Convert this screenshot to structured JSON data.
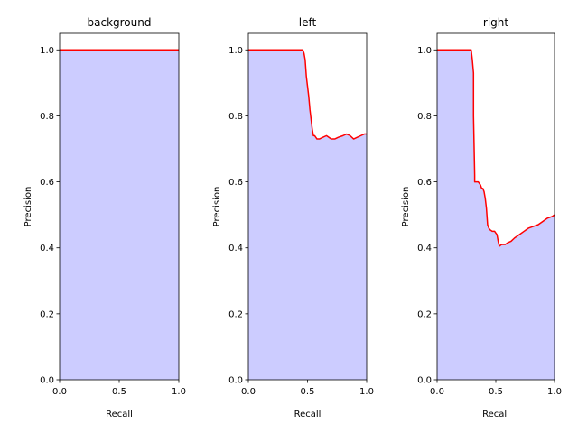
{
  "colors": {
    "fill": "#ccccff",
    "line": "#ff0000",
    "frame": "#000000"
  },
  "chart_data": [
    {
      "type": "area",
      "title": "background",
      "xlabel": "Recall",
      "ylabel": "Precision",
      "xlim": [
        0,
        1
      ],
      "ylim": [
        0,
        1.05
      ],
      "xticks": [
        "0.0",
        "0.5",
        "1.0"
      ],
      "yticks": [
        "0.0",
        "0.2",
        "0.4",
        "0.6",
        "0.8",
        "1.0"
      ],
      "grid": false,
      "series": [
        {
          "x": [
            0.0,
            1.0
          ],
          "y": [
            1.0,
            1.0
          ]
        }
      ]
    },
    {
      "type": "area",
      "title": "left",
      "xlabel": "Recall",
      "ylabel": "Precision",
      "xlim": [
        0,
        1
      ],
      "ylim": [
        0,
        1.05
      ],
      "xticks": [
        "0.0",
        "0.5",
        "1.0"
      ],
      "yticks": [
        "0.0",
        "0.2",
        "0.4",
        "0.6",
        "0.8",
        "1.0"
      ],
      "grid": false,
      "series": [
        {
          "x": [
            0.0,
            0.46,
            0.47,
            0.48,
            0.49,
            0.5,
            0.51,
            0.52,
            0.53,
            0.54,
            0.55,
            0.56,
            0.58,
            0.6,
            0.63,
            0.66,
            0.7,
            0.73,
            0.76,
            0.8,
            0.83,
            0.86,
            0.89,
            0.92,
            0.95,
            0.98,
            1.0
          ],
          "y": [
            1.0,
            1.0,
            0.99,
            0.97,
            0.92,
            0.89,
            0.86,
            0.82,
            0.79,
            0.76,
            0.74,
            0.74,
            0.73,
            0.73,
            0.735,
            0.74,
            0.73,
            0.73,
            0.735,
            0.74,
            0.745,
            0.74,
            0.73,
            0.735,
            0.74,
            0.745,
            0.745
          ]
        }
      ]
    },
    {
      "type": "area",
      "title": "right",
      "xlabel": "Recall",
      "ylabel": "Precision",
      "xlim": [
        0,
        1
      ],
      "ylim": [
        0,
        1.05
      ],
      "xticks": [
        "0.0",
        "0.5",
        "1.0"
      ],
      "yticks": [
        "0.0",
        "0.2",
        "0.4",
        "0.6",
        "0.8",
        "1.0"
      ],
      "grid": false,
      "series": [
        {
          "x": [
            0.0,
            0.29,
            0.3,
            0.31,
            0.31,
            0.32,
            0.32,
            0.33,
            0.35,
            0.37,
            0.38,
            0.39,
            0.4,
            0.41,
            0.42,
            0.43,
            0.44,
            0.45,
            0.47,
            0.49,
            0.5,
            0.51,
            0.52,
            0.53,
            0.55,
            0.58,
            0.6,
            0.63,
            0.66,
            0.7,
            0.74,
            0.78,
            0.82,
            0.86,
            0.9,
            0.94,
            0.98,
            1.0
          ],
          "y": [
            1.0,
            1.0,
            0.97,
            0.93,
            0.8,
            0.62,
            0.6,
            0.6,
            0.6,
            0.59,
            0.58,
            0.58,
            0.57,
            0.55,
            0.52,
            0.47,
            0.46,
            0.455,
            0.45,
            0.45,
            0.445,
            0.44,
            0.42,
            0.405,
            0.41,
            0.41,
            0.415,
            0.42,
            0.43,
            0.44,
            0.45,
            0.46,
            0.465,
            0.47,
            0.48,
            0.49,
            0.495,
            0.5
          ]
        }
      ]
    }
  ]
}
